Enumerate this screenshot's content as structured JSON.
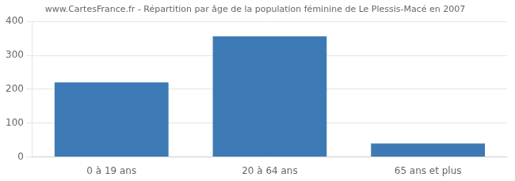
{
  "chart_data": {
    "type": "bar",
    "title": "www.CartesFrance.fr - Répartition par âge de la population féminine de Le Plessis-Macé en 2007",
    "categories": [
      "0 à 19 ans",
      "20 à 64 ans",
      "65 ans et plus"
    ],
    "values": [
      220,
      356,
      40
    ],
    "color": "#3d7ab5",
    "ylim": [
      0,
      400
    ],
    "yticks": [
      0,
      100,
      200,
      300,
      400
    ],
    "grid": true
  }
}
